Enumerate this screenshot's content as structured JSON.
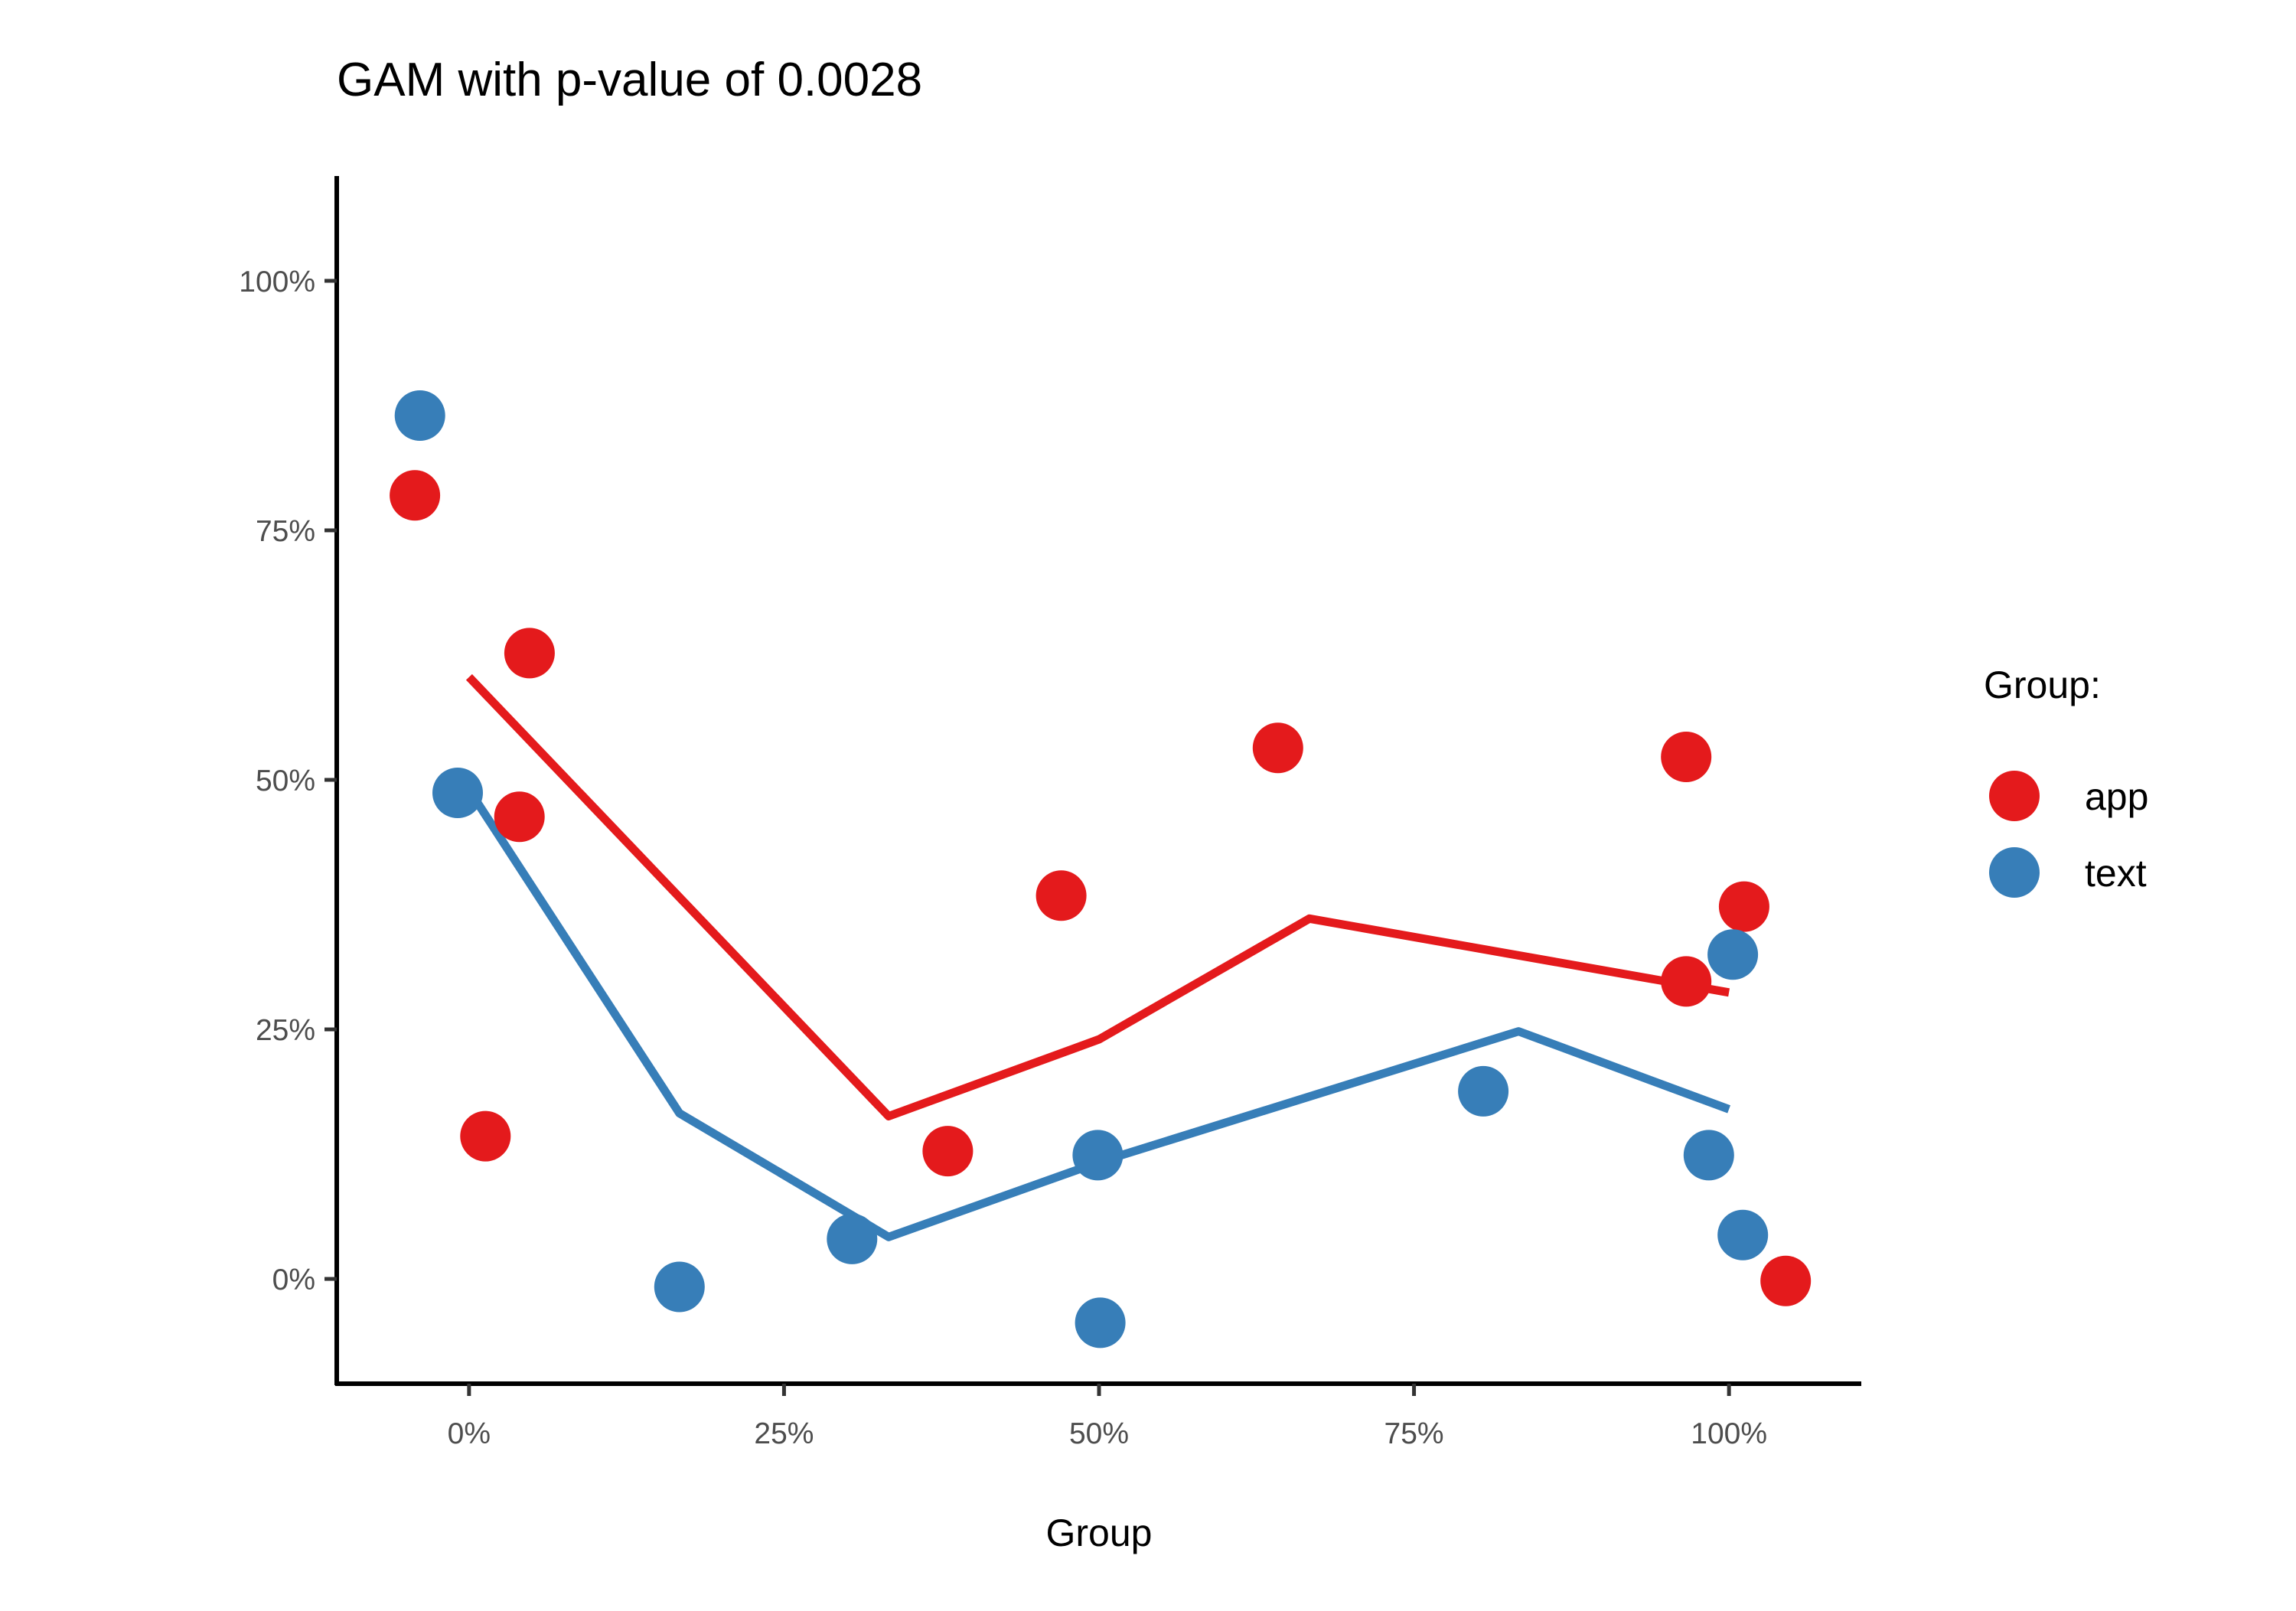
{
  "chart_data": {
    "type": "scatter",
    "title": "GAM with p-value of 0.0028",
    "xlabel": "Group",
    "ylabel": "",
    "xlim": [
      -0.105,
      1.105
    ],
    "ylim": [
      -0.105,
      1.105
    ],
    "x_ticks": [
      {
        "value": 0,
        "label": "0%"
      },
      {
        "value": 0.25,
        "label": "25%"
      },
      {
        "value": 0.5,
        "label": "50%"
      },
      {
        "value": 0.75,
        "label": "75%"
      },
      {
        "value": 1,
        "label": "100%"
      }
    ],
    "y_ticks": [
      {
        "value": 0,
        "label": "0%"
      },
      {
        "value": 0.25,
        "label": "25%"
      },
      {
        "value": 0.5,
        "label": "50%"
      },
      {
        "value": 0.75,
        "label": "75%"
      },
      {
        "value": 1,
        "label": "100%"
      }
    ],
    "grid": false,
    "legend": {
      "title": "Group:",
      "position": "right"
    },
    "series": [
      {
        "name": "app",
        "color": "#e41a1c",
        "points": [
          {
            "x": -0.043,
            "y": 0.785
          },
          {
            "x": 0.013,
            "y": 0.143
          },
          {
            "x": 0.04,
            "y": 0.463
          },
          {
            "x": 0.048,
            "y": 0.627
          },
          {
            "x": 0.38,
            "y": 0.128
          },
          {
            "x": 0.47,
            "y": 0.384
          },
          {
            "x": 0.642,
            "y": 0.532
          },
          {
            "x": 0.966,
            "y": 0.523
          },
          {
            "x": 0.966,
            "y": 0.298
          },
          {
            "x": 1.012,
            "y": 0.373
          },
          {
            "x": 1.045,
            "y": -0.002
          }
        ],
        "trend": [
          {
            "x": 0.0,
            "y": 0.603
          },
          {
            "x": 0.333,
            "y": 0.163
          },
          {
            "x": 0.5,
            "y": 0.24
          },
          {
            "x": 0.667,
            "y": 0.361
          },
          {
            "x": 1.0,
            "y": 0.287
          }
        ]
      },
      {
        "name": "text",
        "color": "#377eb8",
        "points": [
          {
            "x": -0.039,
            "y": 0.865
          },
          {
            "x": -0.009,
            "y": 0.487
          },
          {
            "x": 0.167,
            "y": -0.008
          },
          {
            "x": 0.304,
            "y": 0.04
          },
          {
            "x": 0.499,
            "y": 0.124
          },
          {
            "x": 0.501,
            "y": -0.044
          },
          {
            "x": 0.805,
            "y": 0.188
          },
          {
            "x": 0.984,
            "y": 0.124
          },
          {
            "x": 1.003,
            "y": 0.325
          },
          {
            "x": 1.011,
            "y": 0.044
          }
        ],
        "trend": [
          {
            "x": 0.0,
            "y": 0.49
          },
          {
            "x": 0.167,
            "y": 0.166
          },
          {
            "x": 0.333,
            "y": 0.042
          },
          {
            "x": 0.5,
            "y": 0.117
          },
          {
            "x": 0.833,
            "y": 0.248
          },
          {
            "x": 1.0,
            "y": 0.17
          }
        ]
      }
    ]
  }
}
